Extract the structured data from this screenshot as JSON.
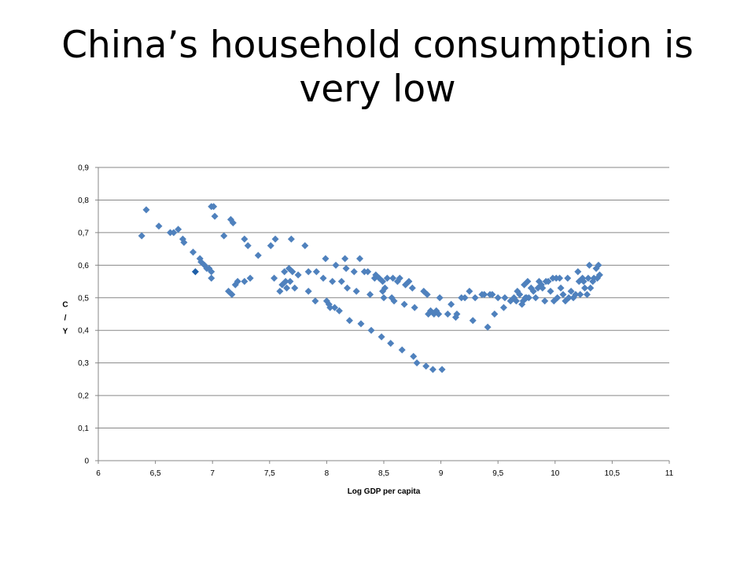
{
  "slide": {
    "title": "China’s household consumption is very low"
  },
  "chart_data": {
    "type": "scatter",
    "title": "",
    "xlabel": "Log GDP per capita",
    "ylabel": "C / Y",
    "xlim": [
      6,
      11
    ],
    "ylim": [
      0,
      0.9
    ],
    "x_ticks": [
      "6",
      "6,5",
      "7",
      "7,5",
      "8",
      "8,5",
      "9",
      "9,5",
      "10",
      "10,5",
      "11"
    ],
    "y_ticks": [
      "0",
      "0,1",
      "0,2",
      "0,3",
      "0,4",
      "0,5",
      "0,6",
      "0,7",
      "0,8",
      "0,9"
    ],
    "gridlines": "horizontal",
    "marker": "diamond",
    "marker_color": "#4F81BD",
    "highlight_color": "#1F5FA8",
    "highlight_point": {
      "x": 6.85,
      "y": 0.58
    },
    "points": [
      [
        6.38,
        0.69
      ],
      [
        6.42,
        0.77
      ],
      [
        6.53,
        0.72
      ],
      [
        6.63,
        0.7
      ],
      [
        6.66,
        0.7
      ],
      [
        6.7,
        0.71
      ],
      [
        6.74,
        0.68
      ],
      [
        6.75,
        0.67
      ],
      [
        6.83,
        0.64
      ],
      [
        6.89,
        0.62
      ],
      [
        6.9,
        0.61
      ],
      [
        6.93,
        0.6
      ],
      [
        6.95,
        0.59
      ],
      [
        6.97,
        0.59
      ],
      [
        6.99,
        0.58
      ],
      [
        6.99,
        0.56
      ],
      [
        6.99,
        0.78
      ],
      [
        7.01,
        0.78
      ],
      [
        7.02,
        0.75
      ],
      [
        7.1,
        0.69
      ],
      [
        7.14,
        0.52
      ],
      [
        7.16,
        0.74
      ],
      [
        7.17,
        0.51
      ],
      [
        7.18,
        0.73
      ],
      [
        7.2,
        0.54
      ],
      [
        7.22,
        0.55
      ],
      [
        7.28,
        0.55
      ],
      [
        7.28,
        0.68
      ],
      [
        7.31,
        0.66
      ],
      [
        7.33,
        0.56
      ],
      [
        7.4,
        0.63
      ],
      [
        7.51,
        0.66
      ],
      [
        7.54,
        0.56
      ],
      [
        7.55,
        0.68
      ],
      [
        7.59,
        0.52
      ],
      [
        7.61,
        0.54
      ],
      [
        7.63,
        0.58
      ],
      [
        7.64,
        0.55
      ],
      [
        7.65,
        0.53
      ],
      [
        7.67,
        0.59
      ],
      [
        7.68,
        0.55
      ],
      [
        7.69,
        0.68
      ],
      [
        7.7,
        0.58
      ],
      [
        7.72,
        0.53
      ],
      [
        7.75,
        0.57
      ],
      [
        7.81,
        0.66
      ],
      [
        7.84,
        0.58
      ],
      [
        7.84,
        0.52
      ],
      [
        7.9,
        0.49
      ],
      [
        7.91,
        0.58
      ],
      [
        7.97,
        0.56
      ],
      [
        7.99,
        0.62
      ],
      [
        8.0,
        0.49
      ],
      [
        8.02,
        0.48
      ],
      [
        8.03,
        0.47
      ],
      [
        8.05,
        0.55
      ],
      [
        8.07,
        0.47
      ],
      [
        8.08,
        0.6
      ],
      [
        8.11,
        0.46
      ],
      [
        8.13,
        0.55
      ],
      [
        8.16,
        0.62
      ],
      [
        8.17,
        0.59
      ],
      [
        8.18,
        0.53
      ],
      [
        8.2,
        0.43
      ],
      [
        8.24,
        0.58
      ],
      [
        8.26,
        0.52
      ],
      [
        8.29,
        0.62
      ],
      [
        8.3,
        0.42
      ],
      [
        8.33,
        0.58
      ],
      [
        8.36,
        0.58
      ],
      [
        8.38,
        0.51
      ],
      [
        8.39,
        0.4
      ],
      [
        8.42,
        0.56
      ],
      [
        8.43,
        0.57
      ],
      [
        8.46,
        0.56
      ],
      [
        8.48,
        0.38
      ],
      [
        8.49,
        0.52
      ],
      [
        8.49,
        0.55
      ],
      [
        8.51,
        0.53
      ],
      [
        8.5,
        0.5
      ],
      [
        8.53,
        0.56
      ],
      [
        8.56,
        0.36
      ],
      [
        8.57,
        0.5
      ],
      [
        8.58,
        0.56
      ],
      [
        8.59,
        0.49
      ],
      [
        8.62,
        0.55
      ],
      [
        8.64,
        0.56
      ],
      [
        8.66,
        0.34
      ],
      [
        8.68,
        0.48
      ],
      [
        8.69,
        0.54
      ],
      [
        8.72,
        0.55
      ],
      [
        8.75,
        0.53
      ],
      [
        8.76,
        0.32
      ],
      [
        8.77,
        0.47
      ],
      [
        8.79,
        0.3
      ],
      [
        8.85,
        0.52
      ],
      [
        8.87,
        0.29
      ],
      [
        8.88,
        0.51
      ],
      [
        8.89,
        0.45
      ],
      [
        8.91,
        0.46
      ],
      [
        8.93,
        0.28
      ],
      [
        8.94,
        0.45
      ],
      [
        8.96,
        0.46
      ],
      [
        8.98,
        0.45
      ],
      [
        8.99,
        0.5
      ],
      [
        9.01,
        0.28
      ],
      [
        9.06,
        0.45
      ],
      [
        9.09,
        0.48
      ],
      [
        9.13,
        0.44
      ],
      [
        9.14,
        0.45
      ],
      [
        9.18,
        0.5
      ],
      [
        9.21,
        0.5
      ],
      [
        9.25,
        0.52
      ],
      [
        9.28,
        0.43
      ],
      [
        9.3,
        0.5
      ],
      [
        9.36,
        0.51
      ],
      [
        9.38,
        0.51
      ],
      [
        9.41,
        0.41
      ],
      [
        9.43,
        0.51
      ],
      [
        9.45,
        0.51
      ],
      [
        9.47,
        0.45
      ],
      [
        9.5,
        0.5
      ],
      [
        9.55,
        0.47
      ],
      [
        9.56,
        0.5
      ],
      [
        9.61,
        0.49
      ],
      [
        9.64,
        0.5
      ],
      [
        9.66,
        0.49
      ],
      [
        9.67,
        0.52
      ],
      [
        9.69,
        0.51
      ],
      [
        9.71,
        0.48
      ],
      [
        9.72,
        0.49
      ],
      [
        9.73,
        0.54
      ],
      [
        9.74,
        0.5
      ],
      [
        9.75,
        0.5
      ],
      [
        9.76,
        0.55
      ],
      [
        9.77,
        0.5
      ],
      [
        9.79,
        0.53
      ],
      [
        9.81,
        0.52
      ],
      [
        9.83,
        0.5
      ],
      [
        9.85,
        0.53
      ],
      [
        9.86,
        0.55
      ],
      [
        9.88,
        0.54
      ],
      [
        9.89,
        0.53
      ],
      [
        9.91,
        0.49
      ],
      [
        9.92,
        0.55
      ],
      [
        9.94,
        0.55
      ],
      [
        9.96,
        0.52
      ],
      [
        9.98,
        0.56
      ],
      [
        9.99,
        0.49
      ],
      [
        10.01,
        0.56
      ],
      [
        10.02,
        0.5
      ],
      [
        10.04,
        0.56
      ],
      [
        10.05,
        0.53
      ],
      [
        10.07,
        0.51
      ],
      [
        10.09,
        0.49
      ],
      [
        10.11,
        0.56
      ],
      [
        10.12,
        0.5
      ],
      [
        10.14,
        0.52
      ],
      [
        10.16,
        0.5
      ],
      [
        10.18,
        0.51
      ],
      [
        10.2,
        0.58
      ],
      [
        10.21,
        0.55
      ],
      [
        10.22,
        0.51
      ],
      [
        10.24,
        0.56
      ],
      [
        10.25,
        0.55
      ],
      [
        10.26,
        0.53
      ],
      [
        10.28,
        0.51
      ],
      [
        10.29,
        0.56
      ],
      [
        10.3,
        0.6
      ],
      [
        10.31,
        0.53
      ],
      [
        10.33,
        0.55
      ],
      [
        10.34,
        0.56
      ],
      [
        10.36,
        0.59
      ],
      [
        10.37,
        0.56
      ],
      [
        10.38,
        0.6
      ],
      [
        10.39,
        0.57
      ]
    ]
  }
}
